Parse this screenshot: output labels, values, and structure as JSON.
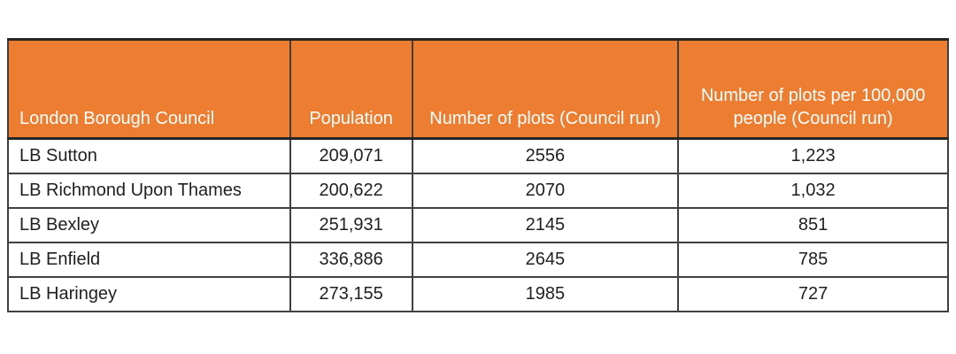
{
  "table": {
    "name": "allotment-plots-by-london-borough",
    "columns": [
      {
        "label": "London Borough Council"
      },
      {
        "label": "Population"
      },
      {
        "label": "Number of plots (Council run)"
      },
      {
        "label": "Number of plots per 100,000 people (Council run)"
      }
    ],
    "rows": [
      [
        "LB Sutton",
        "209,071",
        "2556",
        "1,223"
      ],
      [
        "LB Richmond Upon Thames",
        "200,622",
        "2070",
        "1,032"
      ],
      [
        "LB Bexley",
        "251,931",
        "2145",
        "851"
      ],
      [
        "LB Enfield",
        "336,886",
        "2645",
        "785"
      ],
      [
        "LB Haringey",
        "273,155",
        "1985",
        "727"
      ]
    ],
    "colors": {
      "header_bg": "#ED7D31",
      "header_text": "#FFFFFF",
      "border": "#404040",
      "body_text": "#1F1F1F"
    }
  }
}
